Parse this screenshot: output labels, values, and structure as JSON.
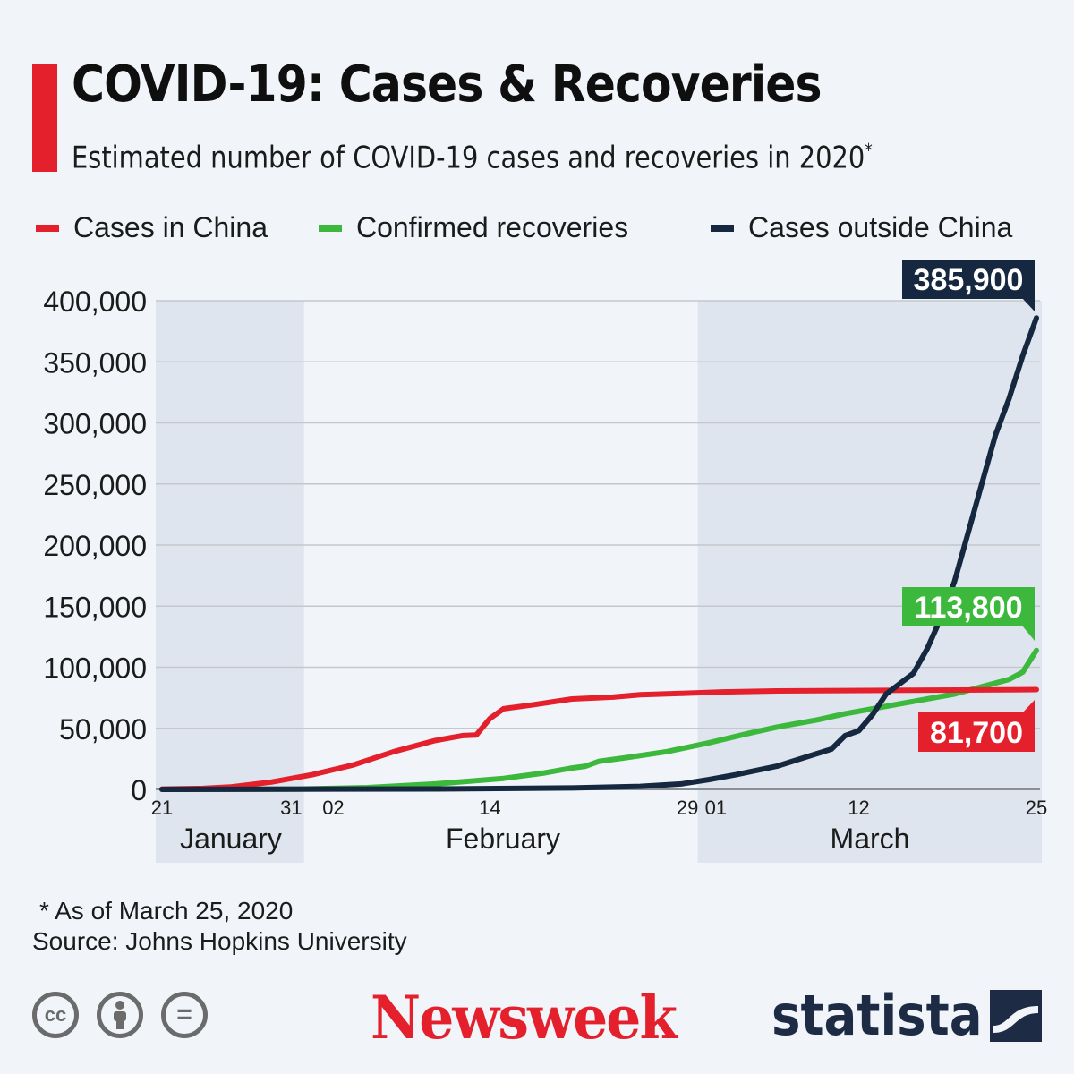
{
  "header": {
    "title": "COVID-19: Cases & Recoveries",
    "subtitle": "Estimated number of COVID-19 cases and recoveries in 2020",
    "subtitle_mark": "*"
  },
  "colors": {
    "accent": "#e3202b",
    "china": "#e3202b",
    "recoveries": "#3cb93c",
    "outside": "#15283f",
    "grid": "#c4c8cc",
    "band": "#dfe5ee"
  },
  "chart_data": {
    "type": "line",
    "title": "COVID-19: Cases & Recoveries",
    "xlabel": "",
    "ylabel": "",
    "ylim": [
      0,
      400000
    ],
    "y_ticks": [
      "0",
      "50,000",
      "100,000",
      "150,000",
      "200,000",
      "250,000",
      "300,000",
      "350,000",
      "400,000"
    ],
    "x_start": "2020-01-21",
    "x_end": "2020-03-25",
    "x_tick_labels": [
      {
        "day": 0,
        "label": "21"
      },
      {
        "day": 10,
        "label": "31"
      },
      {
        "day": 12,
        "label": "02"
      },
      {
        "day": 24,
        "label": "14"
      },
      {
        "day": 39,
        "label": "29"
      },
      {
        "day": 40,
        "label": "01"
      },
      {
        "day": 51,
        "label": "12"
      },
      {
        "day": 64,
        "label": "25"
      }
    ],
    "months": [
      {
        "name": "January",
        "start_day": 0,
        "end_day": 10,
        "shaded": true
      },
      {
        "name": "February",
        "start_day": 11,
        "end_day": 39,
        "shaded": false
      },
      {
        "name": "March",
        "start_day": 40,
        "end_day": 64,
        "shaded": true
      }
    ],
    "series": [
      {
        "name": "Cases in China",
        "color": "#e3202b",
        "end_label": "81,700",
        "points": [
          [
            0,
            300
          ],
          [
            3,
            800
          ],
          [
            5,
            2000
          ],
          [
            8,
            6000
          ],
          [
            11,
            12000
          ],
          [
            14,
            20000
          ],
          [
            17,
            31000
          ],
          [
            20,
            40000
          ],
          [
            22,
            44000
          ],
          [
            23,
            44500
          ],
          [
            24,
            58000
          ],
          [
            25,
            66000
          ],
          [
            27,
            69000
          ],
          [
            30,
            74000
          ],
          [
            33,
            75500
          ],
          [
            35,
            77500
          ],
          [
            38,
            78500
          ],
          [
            41,
            79800
          ],
          [
            45,
            80600
          ],
          [
            50,
            80900
          ],
          [
            55,
            81200
          ],
          [
            60,
            81400
          ],
          [
            64,
            81700
          ]
        ]
      },
      {
        "name": "Confirmed recoveries",
        "color": "#3cb93c",
        "end_label": "113,800",
        "points": [
          [
            0,
            0
          ],
          [
            10,
            300
          ],
          [
            15,
            1500
          ],
          [
            20,
            4500
          ],
          [
            25,
            9000
          ],
          [
            28,
            13500
          ],
          [
            30,
            17500
          ],
          [
            31,
            19000
          ],
          [
            32,
            23000
          ],
          [
            34,
            26000
          ],
          [
            37,
            31000
          ],
          [
            40,
            38000
          ],
          [
            43,
            46000
          ],
          [
            45,
            51000
          ],
          [
            48,
            57000
          ],
          [
            50,
            62000
          ],
          [
            52,
            66000
          ],
          [
            55,
            72000
          ],
          [
            58,
            78000
          ],
          [
            60,
            84000
          ],
          [
            62,
            90000
          ],
          [
            63,
            96000
          ],
          [
            64,
            113800
          ]
        ]
      },
      {
        "name": "Cases outside China",
        "color": "#15283f",
        "end_label": "385,900",
        "points": [
          [
            0,
            0
          ],
          [
            20,
            400
          ],
          [
            30,
            1200
          ],
          [
            35,
            2500
          ],
          [
            38,
            4500
          ],
          [
            40,
            8000
          ],
          [
            42,
            12000
          ],
          [
            45,
            19000
          ],
          [
            47,
            26000
          ],
          [
            49,
            33000
          ],
          [
            50,
            44000
          ],
          [
            51,
            48000
          ],
          [
            52,
            61000
          ],
          [
            53,
            78000
          ],
          [
            55,
            95000
          ],
          [
            56,
            115000
          ],
          [
            57,
            140000
          ],
          [
            58,
            170000
          ],
          [
            59,
            210000
          ],
          [
            60,
            250000
          ],
          [
            61,
            290000
          ],
          [
            62,
            320000
          ],
          [
            63,
            355000
          ],
          [
            64,
            385900
          ]
        ]
      }
    ]
  },
  "footer": {
    "footnote": "* As of March 25, 2020",
    "source": "Source: Johns Hopkins University",
    "license_icons": [
      "cc",
      "by",
      "nd"
    ],
    "cc_text": "cc",
    "nd_text": "=",
    "brand_newsweek": "Newsweek",
    "brand_statista": "statista"
  }
}
